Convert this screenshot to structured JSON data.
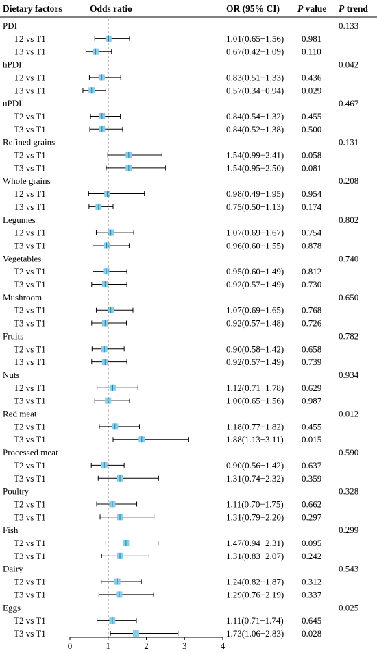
{
  "chart_data": {
    "type": "forest",
    "headers": {
      "factor": "Dietary factors",
      "plot": "Odds ratio",
      "or_ci": "OR (95% CI)",
      "p_value_italic": "P",
      "p_value_rest": " value",
      "p_trend_italic": "P",
      "p_trend_rest": " trend"
    },
    "reference_line": 1,
    "xlim": [
      0,
      4
    ],
    "ticks": [
      "0",
      "1",
      "2",
      "3",
      "4"
    ],
    "marker_color": "#87ceeb",
    "groups": [
      {
        "name": "PDI",
        "p_trend": "0.133",
        "rows": [
          {
            "label": "T2 vs T1",
            "or": 1.01,
            "lo": 0.65,
            "hi": 1.56,
            "ci_text": "1.01(0.65−1.56)",
            "p": "0.981"
          },
          {
            "label": "T3 vs T1",
            "or": 0.67,
            "lo": 0.42,
            "hi": 1.09,
            "ci_text": "0.67(0.42−1.09)",
            "p": "0.110"
          }
        ]
      },
      {
        "name": "hPDI",
        "p_trend": "0.042",
        "rows": [
          {
            "label": "T2 vs T1",
            "or": 0.83,
            "lo": 0.51,
            "hi": 1.33,
            "ci_text": "0.83(0.51−1.33)",
            "p": "0.436"
          },
          {
            "label": "T3 vs T1",
            "or": 0.57,
            "lo": 0.34,
            "hi": 0.94,
            "ci_text": "0.57(0.34−0.94)",
            "p": "0.029"
          }
        ]
      },
      {
        "name": "uPDI",
        "p_trend": "0.467",
        "rows": [
          {
            "label": "T2 vs T1",
            "or": 0.84,
            "lo": 0.54,
            "hi": 1.32,
            "ci_text": "0.84(0.54−1.32)",
            "p": "0.455"
          },
          {
            "label": "T3 vs T1",
            "or": 0.84,
            "lo": 0.52,
            "hi": 1.38,
            "ci_text": "0.84(0.52−1.38)",
            "p": "0.500"
          }
        ]
      },
      {
        "name": "Refined grains",
        "p_trend": "0.131",
        "rows": [
          {
            "label": "T2 vs T1",
            "or": 1.54,
            "lo": 0.99,
            "hi": 2.41,
            "ci_text": "1.54(0.99−2.41)",
            "p": "0.058"
          },
          {
            "label": "T3 vs T1",
            "or": 1.54,
            "lo": 0.95,
            "hi": 2.5,
            "ci_text": "1.54(0.95−2.50)",
            "p": "0.081"
          }
        ]
      },
      {
        "name": "Whole grains",
        "p_trend": "0.208",
        "rows": [
          {
            "label": "T2 vs T1",
            "or": 0.98,
            "lo": 0.49,
            "hi": 1.95,
            "ci_text": "0.98(0.49−1.95)",
            "p": "0.954"
          },
          {
            "label": "T3 vs T1",
            "or": 0.75,
            "lo": 0.5,
            "hi": 1.13,
            "ci_text": "0.75(0.50−1.13)",
            "p": "0.174"
          }
        ]
      },
      {
        "name": "Legumes",
        "p_trend": "0.802",
        "rows": [
          {
            "label": "T2 vs T1",
            "or": 1.07,
            "lo": 0.69,
            "hi": 1.67,
            "ci_text": "1.07(0.69−1.67)",
            "p": "0.754"
          },
          {
            "label": "T3 vs T1",
            "or": 0.96,
            "lo": 0.6,
            "hi": 1.55,
            "ci_text": "0.96(0.60−1.55)",
            "p": "0.878"
          }
        ]
      },
      {
        "name": "Vegetables",
        "p_trend": "0.740",
        "rows": [
          {
            "label": "T2 vs T1",
            "or": 0.95,
            "lo": 0.6,
            "hi": 1.49,
            "ci_text": "0.95(0.60−1.49)",
            "p": "0.812"
          },
          {
            "label": "T3 vs T1",
            "or": 0.92,
            "lo": 0.57,
            "hi": 1.49,
            "ci_text": "0.92(0.57−1.49)",
            "p": "0.730"
          }
        ]
      },
      {
        "name": "Mushroom",
        "p_trend": "0.650",
        "rows": [
          {
            "label": "T2 vs T1",
            "or": 1.07,
            "lo": 0.69,
            "hi": 1.65,
            "ci_text": "1.07(0.69−1.65)",
            "p": "0.768"
          },
          {
            "label": "T3 vs T1",
            "or": 0.92,
            "lo": 0.57,
            "hi": 1.48,
            "ci_text": "0.92(0.57−1.48)",
            "p": "0.726"
          }
        ]
      },
      {
        "name": "Fruits",
        "p_trend": "0.782",
        "rows": [
          {
            "label": "T2 vs T1",
            "or": 0.9,
            "lo": 0.58,
            "hi": 1.42,
            "ci_text": "0.90(0.58−1.42)",
            "p": "0.658"
          },
          {
            "label": "T3 vs T1",
            "or": 0.92,
            "lo": 0.57,
            "hi": 1.49,
            "ci_text": "0.92(0.57−1.49)",
            "p": "0.739"
          }
        ]
      },
      {
        "name": "Nuts",
        "p_trend": "0.934",
        "rows": [
          {
            "label": "T2 vs T1",
            "or": 1.12,
            "lo": 0.71,
            "hi": 1.78,
            "ci_text": "1.12(0.71−1.78)",
            "p": "0.629"
          },
          {
            "label": "T3 vs T1",
            "or": 1.0,
            "lo": 0.65,
            "hi": 1.56,
            "ci_text": "1.00(0.65−1.56)",
            "p": "0.987"
          }
        ]
      },
      {
        "name": "Red meat",
        "p_trend": "0.012",
        "rows": [
          {
            "label": "T2 vs T1",
            "or": 1.18,
            "lo": 0.77,
            "hi": 1.82,
            "ci_text": "1.18(0.77−1.82)",
            "p": "0.455"
          },
          {
            "label": "T3 vs T1",
            "or": 1.88,
            "lo": 1.13,
            "hi": 3.11,
            "ci_text": "1.88(1.13−3.11)",
            "p": "0.015"
          }
        ]
      },
      {
        "name": "Processed meat",
        "p_trend": "0.590",
        "rows": [
          {
            "label": "T2 vs T1",
            "or": 0.9,
            "lo": 0.56,
            "hi": 1.42,
            "ci_text": "0.90(0.56−1.42)",
            "p": "0.637"
          },
          {
            "label": "T3 vs T1",
            "or": 1.31,
            "lo": 0.74,
            "hi": 2.32,
            "ci_text": "1.31(0.74−2.32)",
            "p": "0.359"
          }
        ]
      },
      {
        "name": "Poultry",
        "p_trend": "0.328",
        "rows": [
          {
            "label": "T2 vs T1",
            "or": 1.11,
            "lo": 0.7,
            "hi": 1.75,
            "ci_text": "1.11(0.70−1.75)",
            "p": "0.662"
          },
          {
            "label": "T3 vs T1",
            "or": 1.31,
            "lo": 0.79,
            "hi": 2.2,
            "ci_text": "1.31(0.79−2.20)",
            "p": "0.297"
          }
        ]
      },
      {
        "name": "Fish",
        "p_trend": "0.299",
        "rows": [
          {
            "label": "T2 vs T1",
            "or": 1.47,
            "lo": 0.94,
            "hi": 2.31,
            "ci_text": "1.47(0.94−2.31)",
            "p": "0.095"
          },
          {
            "label": "T3 vs T1",
            "or": 1.31,
            "lo": 0.83,
            "hi": 2.07,
            "ci_text": "1.31(0.83−2.07)",
            "p": "0.242"
          }
        ]
      },
      {
        "name": "Dairy",
        "p_trend": "0.543",
        "rows": [
          {
            "label": "T2 vs T1",
            "or": 1.24,
            "lo": 0.82,
            "hi": 1.87,
            "ci_text": "1.24(0.82−1.87)",
            "p": "0.312"
          },
          {
            "label": "T3 vs T1",
            "or": 1.29,
            "lo": 0.76,
            "hi": 2.19,
            "ci_text": "1.29(0.76−2.19)",
            "p": "0.337"
          }
        ]
      },
      {
        "name": "Eggs",
        "p_trend": "0.025",
        "rows": [
          {
            "label": "T2 vs T1",
            "or": 1.11,
            "lo": 0.71,
            "hi": 1.74,
            "ci_text": "1.11(0.71−1.74)",
            "p": "0.645"
          },
          {
            "label": "T3 vs T1",
            "or": 1.73,
            "lo": 1.06,
            "hi": 2.83,
            "ci_text": "1.73(1.06−2.83)",
            "p": "0.028"
          }
        ]
      }
    ]
  }
}
